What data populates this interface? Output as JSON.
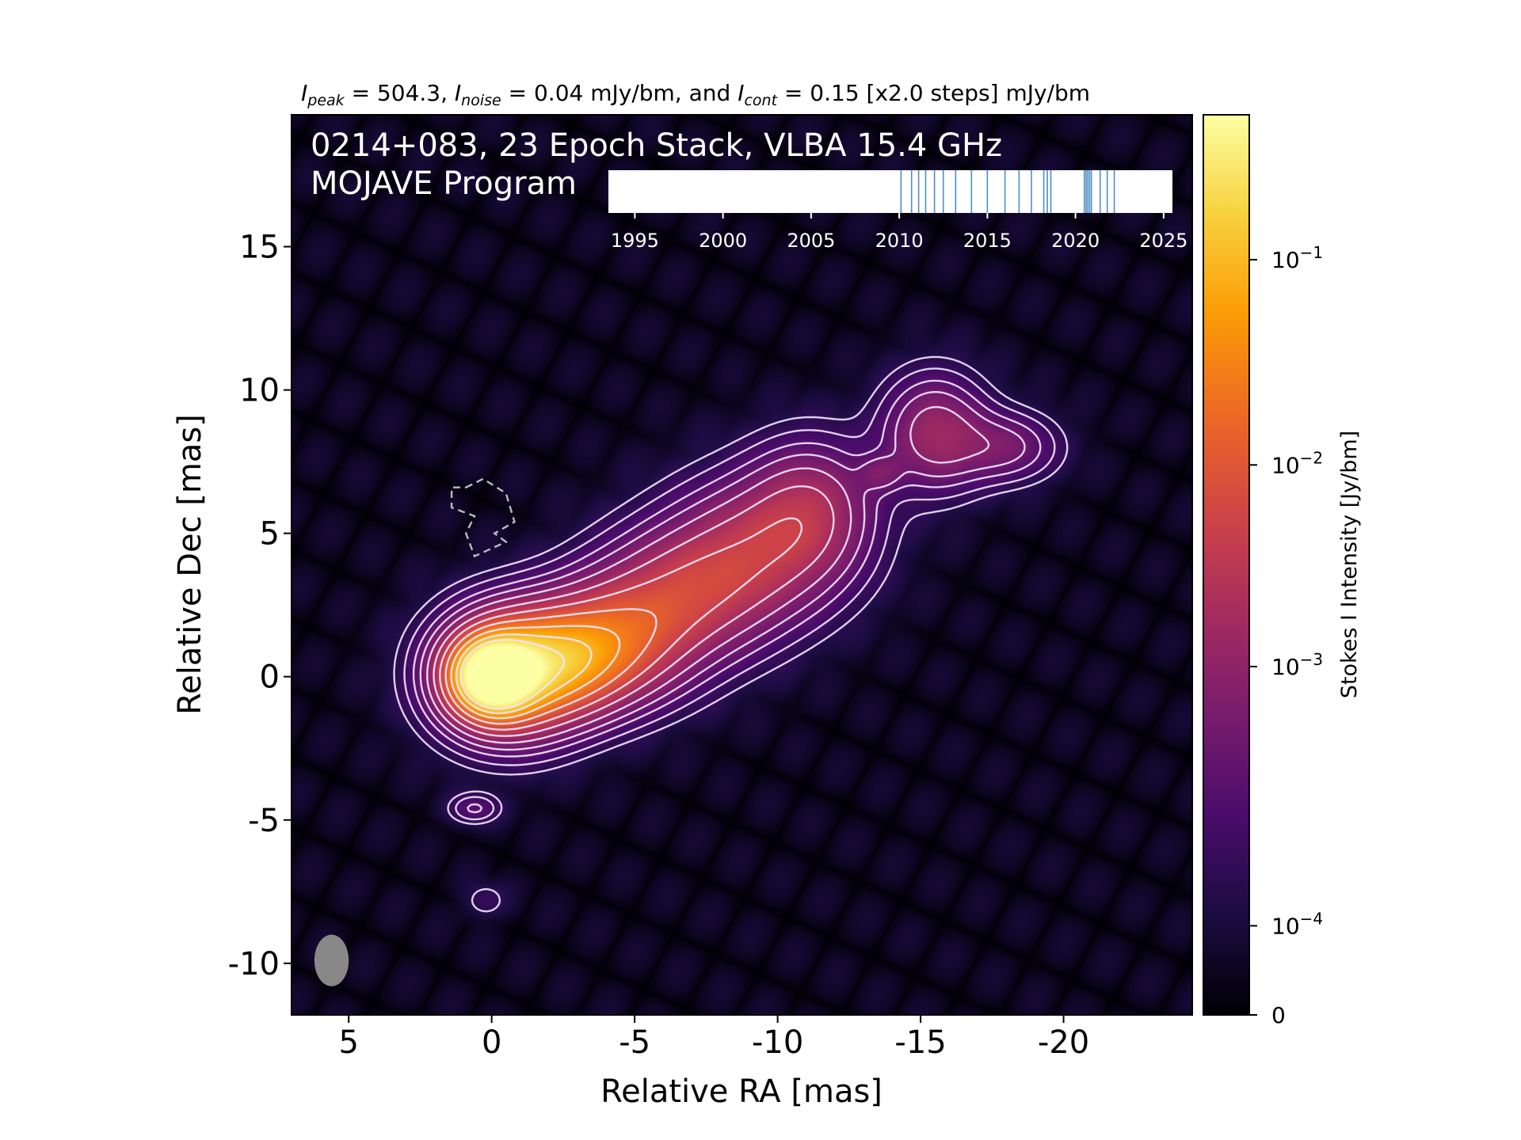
{
  "chart_data": {
    "type": "heatmap",
    "header": {
      "peak_sym": "I",
      "peak_sub": "peak",
      "peak_eq": " = 504.3, ",
      "noise_sym": "I",
      "noise_sub": "noise",
      "noise_eq": " = 0.04 mJy/bm, and ",
      "cont_sym": "I",
      "cont_sub": "cont",
      "cont_eq": " = 0.15 [x2.0 steps] mJy/bm"
    },
    "title_line1": "0214+083, 23 Epoch Stack, VLBA 15.4 GHz",
    "title_line2": "MOJAVE Program",
    "xlabel": "Relative RA [mas]",
    "ylabel": "Relative Dec [mas]",
    "xlim": [
      7,
      -24.5
    ],
    "ylim": [
      -11.8,
      19.6
    ],
    "xticks": [
      {
        "v": 5,
        "label": "5"
      },
      {
        "v": 0,
        "label": "0"
      },
      {
        "v": -5,
        "label": "-5"
      },
      {
        "v": -10,
        "label": "-10"
      },
      {
        "v": -15,
        "label": "-15"
      },
      {
        "v": -20,
        "label": "-20"
      }
    ],
    "yticks": [
      {
        "v": 15,
        "label": "15"
      },
      {
        "v": 10,
        "label": "10"
      },
      {
        "v": 5,
        "label": "5"
      },
      {
        "v": 0,
        "label": "0"
      },
      {
        "v": -5,
        "label": "-5"
      },
      {
        "v": -10,
        "label": "-10"
      }
    ],
    "colorbar": {
      "label": "Stokes I Intensity [Jy/bm]",
      "scale": "log",
      "ticks": [
        {
          "pos": 0.839,
          "base": "10",
          "exp": "−1"
        },
        {
          "pos": 0.611,
          "base": "10",
          "exp": "−2"
        },
        {
          "pos": 0.387,
          "base": "10",
          "exp": "−3"
        },
        {
          "pos": 0.099,
          "base": "10",
          "exp": "−4"
        },
        {
          "pos": 0.0,
          "base": "0",
          "exp": ""
        }
      ],
      "colors": [
        "#000004",
        "#1b0c41",
        "#4a0c6b",
        "#781c6d",
        "#a52c60",
        "#cf4446",
        "#ed6925",
        "#fb9b06",
        "#f7d13d",
        "#fcffa4"
      ]
    },
    "timeline": {
      "xlim": [
        1993.5,
        2025.5
      ],
      "ticks": [
        {
          "v": 1995,
          "label": "1995"
        },
        {
          "v": 2000,
          "label": "2000"
        },
        {
          "v": 2005,
          "label": "2005"
        },
        {
          "v": 2010,
          "label": "2010"
        },
        {
          "v": 2015,
          "label": "2015"
        },
        {
          "v": 2020,
          "label": "2020"
        },
        {
          "v": 2025,
          "label": "2025"
        }
      ],
      "epochs": [
        2010.1,
        2010.7,
        2011.1,
        2011.5,
        2012.0,
        2012.5,
        2013.2,
        2014.1,
        2015.0,
        2016.0,
        2016.8,
        2017.5,
        2018.2,
        2018.4,
        2018.6,
        2020.5,
        2020.6,
        2020.7,
        2020.8,
        2020.9,
        2021.4,
        2021.8,
        2022.2
      ],
      "epoch_color": "#4f8fc0"
    },
    "jet_components": [
      {
        "x": 0.0,
        "y": 0.0,
        "sx": 0.9,
        "sy": 0.85,
        "amp": 1.0
      },
      {
        "x": -0.6,
        "y": 0.1,
        "sx": 1.6,
        "sy": 1.4,
        "amp": 0.55
      },
      {
        "x": -2.5,
        "y": 0.5,
        "sx": 1.6,
        "sy": 1.2,
        "amp": 0.42
      },
      {
        "x": -4.5,
        "y": 1.4,
        "sx": 1.8,
        "sy": 1.4,
        "amp": 0.32
      },
      {
        "x": -7.0,
        "y": 3.0,
        "sx": 2.0,
        "sy": 1.5,
        "amp": 0.25
      },
      {
        "x": -9.5,
        "y": 4.6,
        "sx": 2.0,
        "sy": 1.6,
        "amp": 0.22
      },
      {
        "x": -11.2,
        "y": 6.0,
        "sx": 1.4,
        "sy": 1.5,
        "amp": 0.17
      },
      {
        "x": -15.5,
        "y": 8.5,
        "sx": 1.2,
        "sy": 1.3,
        "amp": 0.2
      },
      {
        "x": -18.0,
        "y": 8.0,
        "sx": 1.2,
        "sy": 0.8,
        "amp": 0.12
      },
      {
        "x": -13.6,
        "y": 7.1,
        "sx": 0.5,
        "sy": 0.4,
        "amp": 0.09
      },
      {
        "x": 0.6,
        "y": -4.6,
        "sx": 0.6,
        "sy": 0.35,
        "amp": 0.08
      },
      {
        "x": 0.2,
        "y": -7.8,
        "sx": 0.5,
        "sy": 0.4,
        "amp": 0.04
      }
    ],
    "contour_levels": [
      0.025,
      0.045,
      0.075,
      0.11,
      0.16,
      0.23,
      0.32,
      0.43,
      0.56,
      0.7,
      0.84
    ],
    "negative_contour_levels": [
      0.025
    ],
    "beam": {
      "x": 5.6,
      "y": -9.9,
      "rx": 0.6,
      "ry": 0.9
    }
  }
}
